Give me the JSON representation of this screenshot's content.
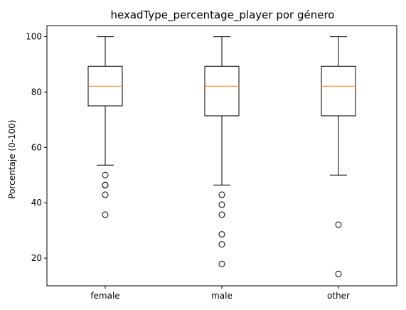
{
  "chart_data": {
    "type": "box",
    "title": "hexadType_percentage_player por género",
    "xlabel": "",
    "ylabel": "Porcentaje (0-100)",
    "ylim": [
      10,
      104
    ],
    "yticks": [
      20,
      40,
      60,
      80,
      100
    ],
    "grid": false,
    "colors": {
      "box": "#000000",
      "median": "#ff7f0e",
      "flier": "#000000"
    },
    "categories": [
      "female",
      "male",
      "other"
    ],
    "boxes": [
      {
        "category": "female",
        "whisker_low": 53.6,
        "q1": 75.0,
        "median": 82.1,
        "q3": 89.3,
        "whisker_high": 100,
        "outliers": [
          50.0,
          46.4,
          46.4,
          42.9,
          35.7
        ]
      },
      {
        "category": "male",
        "whisker_low": 46.4,
        "q1": 71.4,
        "median": 82.1,
        "q3": 89.3,
        "whisker_high": 100,
        "outliers": [
          42.9,
          39.3,
          35.7,
          28.6,
          25.0,
          17.9
        ]
      },
      {
        "category": "other",
        "whisker_low": 50.0,
        "q1": 71.4,
        "median": 82.1,
        "q3": 89.3,
        "whisker_high": 100,
        "outliers": [
          32.1,
          14.3
        ]
      }
    ]
  }
}
